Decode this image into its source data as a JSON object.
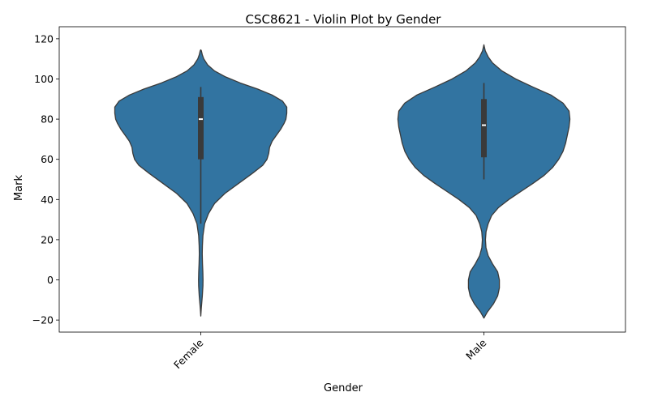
{
  "chart_data": {
    "type": "violin",
    "title": "CSC8621 - Violin Plot by Gender",
    "xlabel": "Gender",
    "ylabel": "Mark",
    "categories": [
      "Female",
      "Male"
    ],
    "ylim": [
      -26,
      126
    ],
    "yticks": [
      -20,
      0,
      20,
      40,
      60,
      80,
      100,
      120
    ],
    "ytick_labels": [
      "−20",
      "0",
      "20",
      "40",
      "60",
      "80",
      "100",
      "120"
    ],
    "xtick_rotation": 45,
    "grid": false,
    "colors": {
      "fill": "#3274a1",
      "edge": "#3a3a3a",
      "box": "#3a3a3a",
      "median": "#ffffff"
    },
    "violins": [
      {
        "name": "Female",
        "q1": 60,
        "median": 80,
        "q3": 91,
        "whisker_low": 28,
        "whisker_high": 96,
        "profile": [
          [
            -18,
            0.0
          ],
          [
            -14,
            0.006
          ],
          [
            -8,
            0.018
          ],
          [
            -3,
            0.025
          ],
          [
            0,
            0.026
          ],
          [
            4,
            0.024
          ],
          [
            8,
            0.02
          ],
          [
            13,
            0.017
          ],
          [
            17,
            0.019
          ],
          [
            22,
            0.025
          ],
          [
            28,
            0.045
          ],
          [
            33,
            0.09
          ],
          [
            38,
            0.16
          ],
          [
            43,
            0.28
          ],
          [
            48,
            0.44
          ],
          [
            53,
            0.6
          ],
          [
            57,
            0.72
          ],
          [
            60,
            0.77
          ],
          [
            63,
            0.79
          ],
          [
            66,
            0.8
          ],
          [
            69,
            0.83
          ],
          [
            72,
            0.88
          ],
          [
            75,
            0.93
          ],
          [
            78,
            0.97
          ],
          [
            80,
            0.99
          ],
          [
            83,
            1.0
          ],
          [
            86,
            1.0
          ],
          [
            89,
            0.95
          ],
          [
            92,
            0.83
          ],
          [
            95,
            0.66
          ],
          [
            98,
            0.46
          ],
          [
            101,
            0.29
          ],
          [
            104,
            0.16
          ],
          [
            107,
            0.08
          ],
          [
            110,
            0.035
          ],
          [
            112,
            0.018
          ],
          [
            114,
            0.007
          ],
          [
            114.5,
            0.0
          ]
        ]
      },
      {
        "name": "Male",
        "q1": 61,
        "median": 77,
        "q3": 90,
        "whisker_low": 50,
        "whisker_high": 98,
        "profile": [
          [
            -19,
            0.0
          ],
          [
            -16,
            0.04
          ],
          [
            -12,
            0.11
          ],
          [
            -8,
            0.16
          ],
          [
            -4,
            0.18
          ],
          [
            0,
            0.18
          ],
          [
            4,
            0.16
          ],
          [
            8,
            0.1
          ],
          [
            12,
            0.05
          ],
          [
            16,
            0.024
          ],
          [
            20,
            0.018
          ],
          [
            24,
            0.025
          ],
          [
            28,
            0.05
          ],
          [
            32,
            0.09
          ],
          [
            36,
            0.17
          ],
          [
            40,
            0.29
          ],
          [
            44,
            0.43
          ],
          [
            48,
            0.57
          ],
          [
            52,
            0.7
          ],
          [
            56,
            0.8
          ],
          [
            60,
            0.87
          ],
          [
            64,
            0.92
          ],
          [
            68,
            0.95
          ],
          [
            72,
            0.97
          ],
          [
            76,
            0.99
          ],
          [
            80,
            1.0
          ],
          [
            84,
            0.99
          ],
          [
            88,
            0.92
          ],
          [
            92,
            0.78
          ],
          [
            96,
            0.57
          ],
          [
            100,
            0.37
          ],
          [
            104,
            0.21
          ],
          [
            108,
            0.1
          ],
          [
            111,
            0.05
          ],
          [
            114,
            0.016
          ],
          [
            116,
            0.005
          ],
          [
            117,
            0.0
          ]
        ]
      }
    ]
  }
}
